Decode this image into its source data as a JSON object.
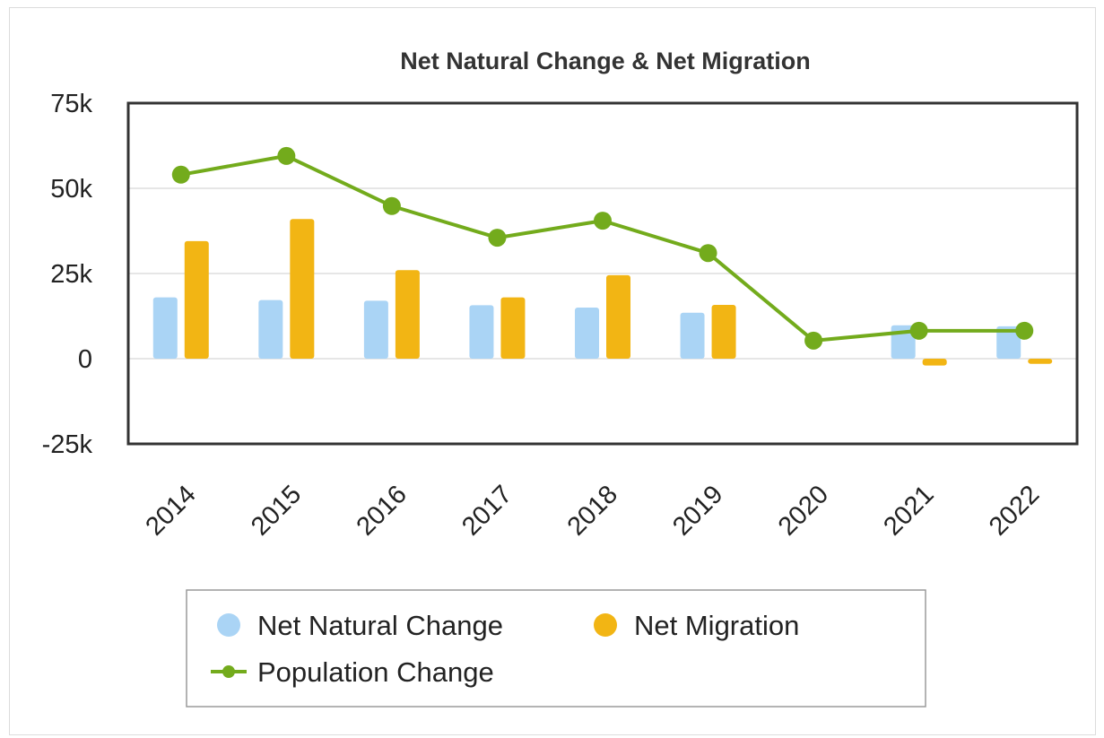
{
  "chart_data": {
    "type": "bar",
    "title": "Net Natural Change & Net Migration",
    "categories": [
      "2014",
      "2015",
      "2016",
      "2017",
      "2018",
      "2019",
      "2020",
      "2021",
      "2022"
    ],
    "series": [
      {
        "name": "Net Natural Change",
        "type": "bar",
        "color": "#aad4f5",
        "values": [
          18000,
          17200,
          17000,
          15700,
          15000,
          13500,
          0,
          9800,
          9500
        ]
      },
      {
        "name": "Net Migration",
        "type": "bar",
        "color": "#f2b514",
        "values": [
          34500,
          41000,
          26000,
          18000,
          24500,
          15800,
          0,
          -2000,
          -1500
        ]
      },
      {
        "name": "Population Change",
        "type": "line",
        "color": "#73ab1c",
        "values": [
          54000,
          59500,
          44800,
          35500,
          40500,
          31000,
          5300,
          8200,
          8200
        ]
      }
    ],
    "ylim": [
      -25000,
      75000
    ],
    "yticks": [
      75000,
      50000,
      25000,
      0,
      -25000
    ],
    "ytick_labels": [
      "75k",
      "50k",
      "25k",
      "0",
      "-25k"
    ],
    "grid": true,
    "legend_position": "bottom"
  }
}
